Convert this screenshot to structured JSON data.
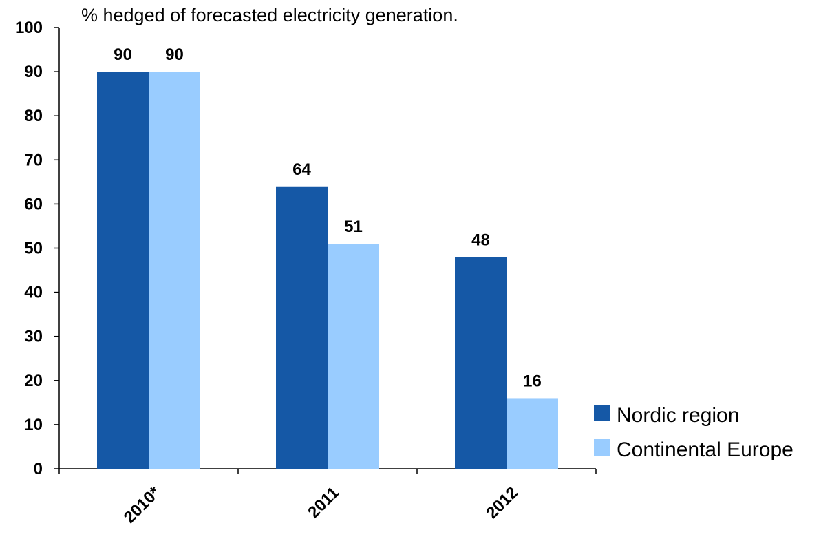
{
  "chart_data": {
    "type": "bar",
    "title": "% hedged of forecasted electricity generation.",
    "xlabel": "",
    "ylabel": "",
    "categories": [
      "2010*",
      "2011",
      "2012"
    ],
    "series": [
      {
        "name": "Nordic region",
        "values": [
          90,
          64,
          48
        ],
        "color": "#1558A6"
      },
      {
        "name": "Continental Europe",
        "values": [
          90,
          51,
          16
        ],
        "color": "#99CCFF"
      }
    ],
    "ylim": [
      0,
      100
    ],
    "yticks": [
      0,
      10,
      20,
      30,
      40,
      50,
      60,
      70,
      80,
      90,
      100
    ],
    "grid": false,
    "legend_position": "right"
  }
}
